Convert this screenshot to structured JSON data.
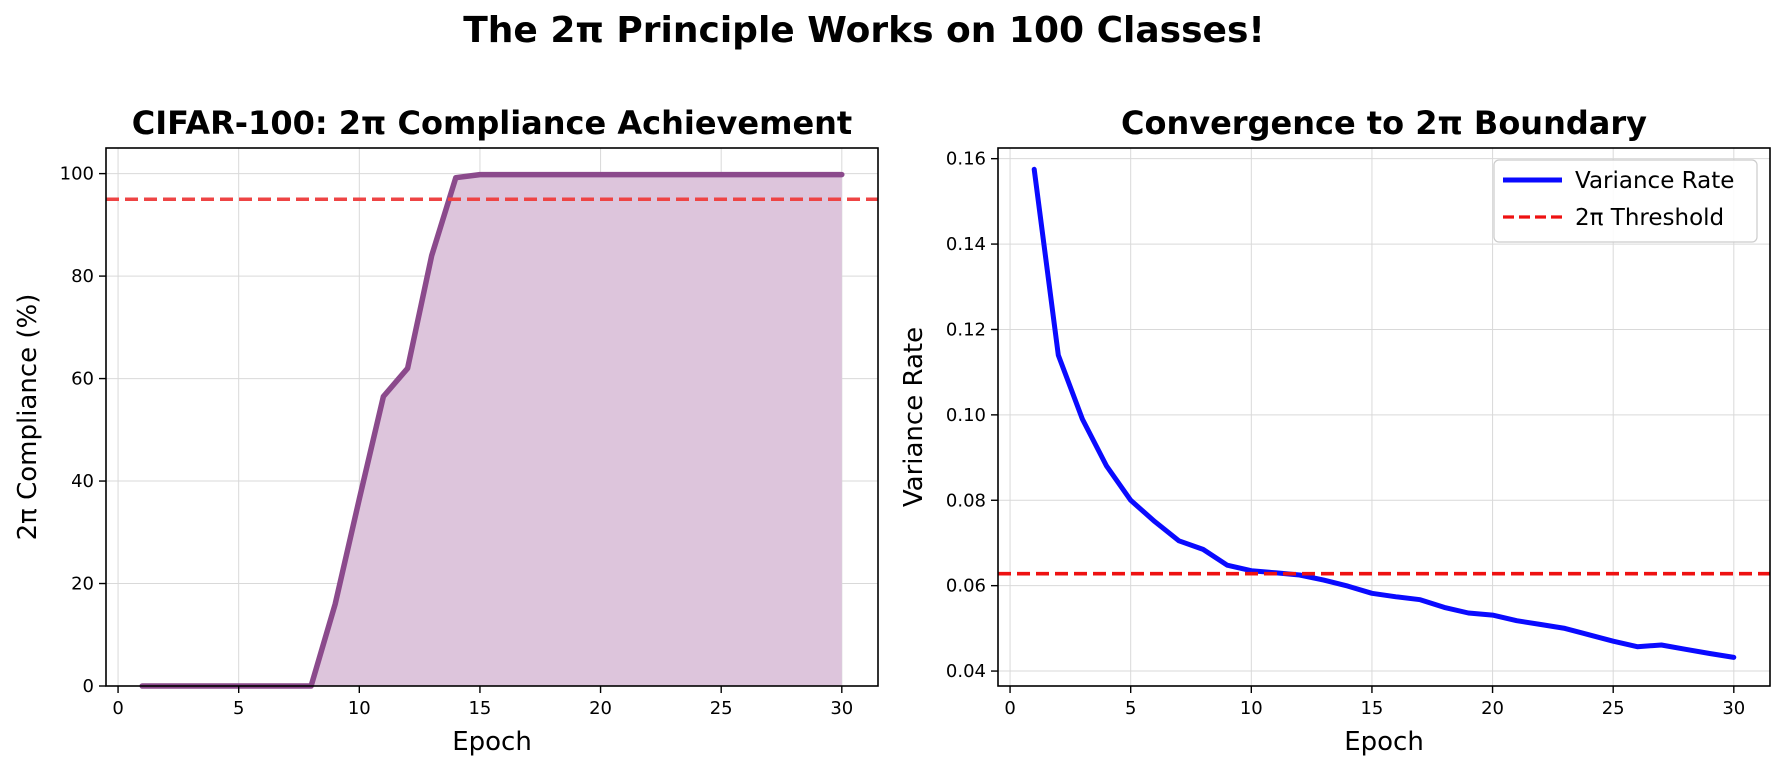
{
  "figure": {
    "title": "The 2π Principle Works on 100 Classes!"
  },
  "chart_data": [
    {
      "type": "area",
      "title": "CIFAR-100: 2π Compliance Achievement",
      "xlabel": "Epoch",
      "ylabel": "2π Compliance (%)",
      "xlim": [
        -0.5,
        31.5
      ],
      "ylim": [
        0,
        105
      ],
      "xticks": [
        0,
        5,
        10,
        15,
        20,
        25,
        30
      ],
      "yticks": [
        0,
        20,
        40,
        60,
        80,
        100
      ],
      "grid": true,
      "series": [
        {
          "x": [
            1,
            2,
            3,
            4,
            5,
            6,
            7,
            8,
            9,
            10,
            11,
            12,
            13,
            14,
            15,
            16,
            17,
            18,
            19,
            20,
            21,
            22,
            23,
            24,
            25,
            26,
            27,
            28,
            29,
            30
          ],
          "values": [
            0,
            0,
            0,
            0,
            0,
            0,
            0,
            0,
            16,
            36.5,
            56.5,
            62,
            84,
            99.2,
            99.8,
            99.8,
            99.8,
            99.8,
            99.8,
            99.8,
            99.8,
            99.8,
            99.8,
            99.8,
            99.8,
            99.8,
            99.8,
            99.8,
            99.8,
            99.8
          ],
          "color": "#8b4a8c",
          "fill": "#ddc5dc"
        }
      ],
      "hlines": [
        {
          "y": 95,
          "color": "#ee4444",
          "style": "dashed"
        }
      ]
    },
    {
      "type": "line",
      "title": "Convergence to 2π Boundary",
      "xlabel": "Epoch",
      "ylabel": "Variance Rate",
      "xlim": [
        -0.5,
        31.5
      ],
      "ylim": [
        0.0365,
        0.1625
      ],
      "xticks": [
        0,
        5,
        10,
        15,
        20,
        25,
        30
      ],
      "yticks": [
        0.04,
        0.06,
        0.08,
        0.1,
        0.12,
        0.14,
        0.16
      ],
      "ytick_labels": [
        "0.04",
        "0.06",
        "0.08",
        "0.10",
        "0.12",
        "0.14",
        "0.16"
      ],
      "grid": true,
      "legend_position": "top-right",
      "series": [
        {
          "name": "Variance Rate",
          "x": [
            1,
            2,
            3,
            4,
            5,
            6,
            7,
            8,
            9,
            10,
            11,
            12,
            13,
            14,
            15,
            16,
            17,
            18,
            19,
            20,
            21,
            22,
            23,
            24,
            25,
            26,
            27,
            28,
            29,
            30
          ],
          "values": [
            0.1575,
            0.114,
            0.099,
            0.088,
            0.08,
            0.075,
            0.0705,
            0.0685,
            0.0648,
            0.0635,
            0.063,
            0.0625,
            0.0613,
            0.0599,
            0.0582,
            0.0574,
            0.0567,
            0.0549,
            0.0536,
            0.0531,
            0.0518,
            0.0509,
            0.05,
            0.0485,
            0.047,
            0.0457,
            0.0461,
            0.0451,
            0.0441,
            0.0432
          ],
          "color": "#0a0aff"
        }
      ],
      "hlines": [
        {
          "name": "2π Threshold",
          "y": 0.0628,
          "color": "#ee1111",
          "style": "dashed"
        }
      ]
    }
  ]
}
